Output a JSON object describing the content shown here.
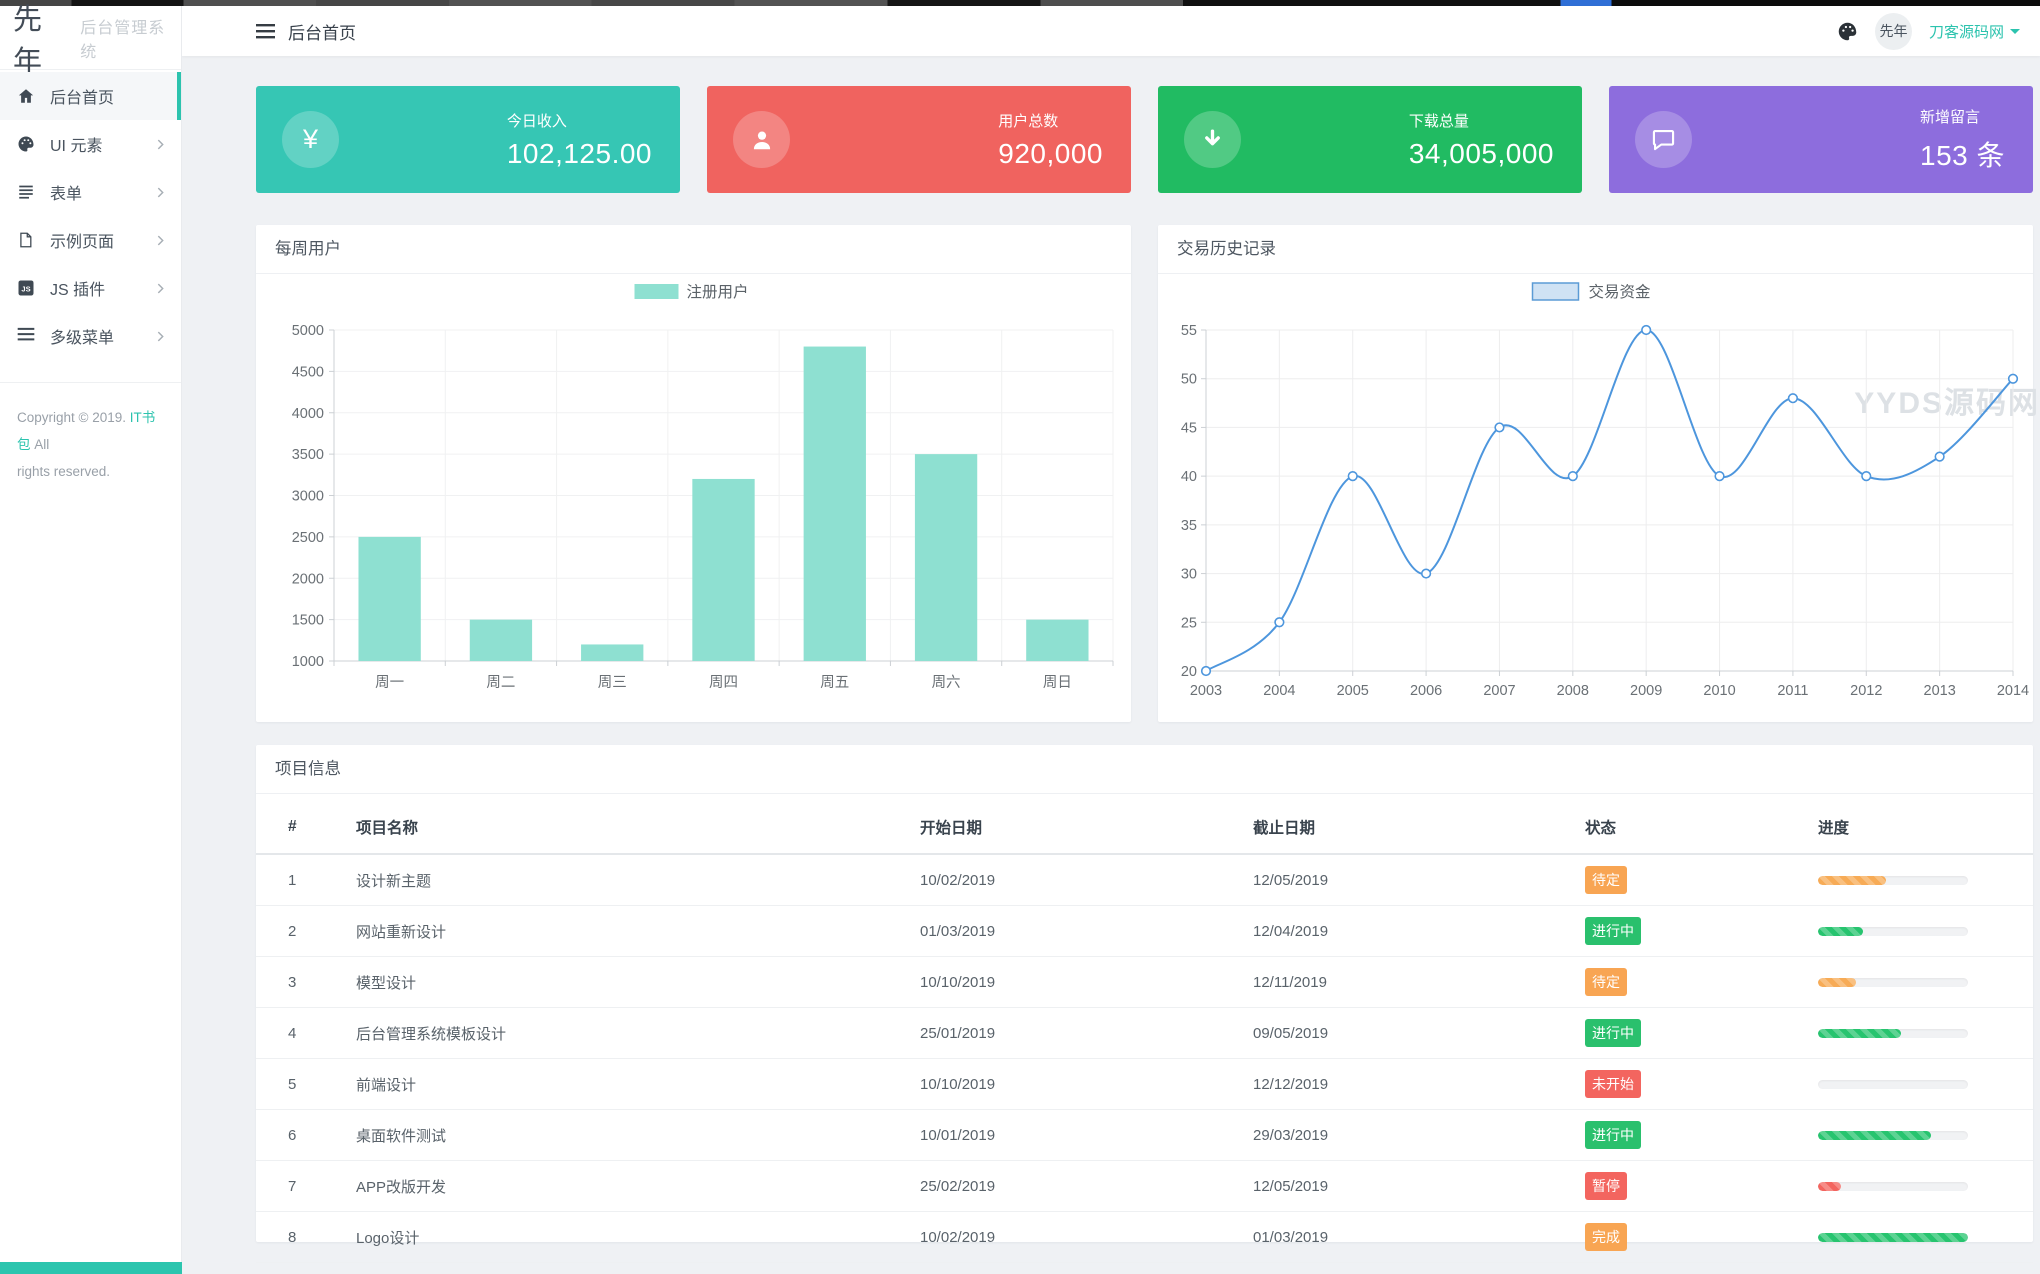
{
  "app": {
    "logo_mark": "先年",
    "logo_title": "后台管理系统"
  },
  "topbar": {
    "breadcrumb": "后台首页",
    "user_name": "刀客源码网",
    "avatar_text": "先年"
  },
  "sidebar": {
    "items": [
      {
        "label": "后台首页",
        "icon": "home",
        "active": true,
        "expandable": false
      },
      {
        "label": "UI 元素",
        "icon": "palette",
        "active": false,
        "expandable": true
      },
      {
        "label": "表单",
        "icon": "form-lines",
        "active": false,
        "expandable": true
      },
      {
        "label": "示例页面",
        "icon": "file",
        "active": false,
        "expandable": true
      },
      {
        "label": "JS 插件",
        "icon": "js",
        "active": false,
        "expandable": true
      },
      {
        "label": "多级菜单",
        "icon": "menu-lines",
        "active": false,
        "expandable": true
      }
    ],
    "copyright_prefix": "Copyright © 2019.",
    "copyright_brand": "IT书包",
    "copyright_suffix": "All",
    "copyright_line2": "rights reserved."
  },
  "stat_cards": [
    {
      "label": "今日收入",
      "value": "102,125.00",
      "icon": "yen",
      "color": "#36c6b4"
    },
    {
      "label": "用户总数",
      "value": "920,000",
      "icon": "user",
      "color": "#f0635f"
    },
    {
      "label": "下载总量",
      "value": "34,005,000",
      "icon": "download",
      "color": "#21bb62"
    },
    {
      "label": "新增留言",
      "value": "153 条",
      "icon": "comment",
      "color": "#8d6ddd"
    }
  ],
  "chart_data": [
    {
      "type": "bar",
      "panel_title": "每周用户",
      "legend": [
        "注册用户"
      ],
      "legend_position": "top-center",
      "categories": [
        "周一",
        "周二",
        "周三",
        "周四",
        "周五",
        "周六",
        "周日"
      ],
      "series": [
        {
          "name": "注册用户",
          "values": [
            2500,
            1500,
            1200,
            3200,
            4800,
            3500,
            1500
          ]
        }
      ],
      "ylim": [
        1000,
        5000
      ],
      "ytick_step": 500,
      "grid": true,
      "bar_color": "#8ee0d1"
    },
    {
      "type": "line",
      "panel_title": "交易历史记录",
      "legend": [
        "交易资金"
      ],
      "legend_position": "top-center",
      "x": [
        "2003",
        "2004",
        "2005",
        "2006",
        "2007",
        "2008",
        "2009",
        "2010",
        "2011",
        "2012",
        "2013",
        "2014"
      ],
      "series": [
        {
          "name": "交易资金",
          "values": [
            20,
            25,
            40,
            30,
            45,
            40,
            55,
            40,
            48,
            40,
            42,
            50
          ]
        }
      ],
      "ylim": [
        20,
        55
      ],
      "ytick_step": 5,
      "grid": true,
      "smooth": true,
      "line_color": "#4d96dd",
      "legend_swatch_fill": "#cfe2f4",
      "legend_swatch_stroke": "#5b9bd5"
    }
  ],
  "watermark": "YYDS源码网",
  "project_table": {
    "panel_title": "项目信息",
    "columns": [
      "#",
      "项目名称",
      "开始日期",
      "截止日期",
      "状态",
      "进度"
    ],
    "rows": [
      {
        "num": "1",
        "name": "设计新主题",
        "start": "10/02/2019",
        "end": "12/05/2019",
        "status": "待定",
        "status_color": "#f8a553",
        "progress": 45,
        "progress_color": "#f7ab56"
      },
      {
        "num": "2",
        "name": "网站重新设计",
        "start": "01/03/2019",
        "end": "12/04/2019",
        "status": "进行中",
        "status_color": "#2ac06d",
        "progress": 30,
        "progress_color": "#27c46f"
      },
      {
        "num": "3",
        "name": "模型设计",
        "start": "10/10/2019",
        "end": "12/11/2019",
        "status": "待定",
        "status_color": "#f8a553",
        "progress": 25,
        "progress_color": "#f7ab56"
      },
      {
        "num": "4",
        "name": "后台管理系统模板设计",
        "start": "25/01/2019",
        "end": "09/05/2019",
        "status": "进行中",
        "status_color": "#2ac06d",
        "progress": 55,
        "progress_color": "#27c46f"
      },
      {
        "num": "5",
        "name": "前端设计",
        "start": "10/10/2019",
        "end": "12/12/2019",
        "status": "未开始",
        "status_color": "#f3655f",
        "progress": 0,
        "progress_color": "#27c46f"
      },
      {
        "num": "6",
        "name": "桌面软件测试",
        "start": "10/01/2019",
        "end": "29/03/2019",
        "status": "进行中",
        "status_color": "#2ac06d",
        "progress": 75,
        "progress_color": "#27c46f"
      },
      {
        "num": "7",
        "name": "APP改版开发",
        "start": "25/02/2019",
        "end": "12/05/2019",
        "status": "暂停",
        "status_color": "#f3655f",
        "progress": 15,
        "progress_color": "#f3655f"
      },
      {
        "num": "8",
        "name": "Logo设计",
        "start": "10/02/2019",
        "end": "01/03/2019",
        "status": "完成",
        "status_color": "#f8a553",
        "progress": 100,
        "progress_color": "#27c46f"
      }
    ]
  }
}
